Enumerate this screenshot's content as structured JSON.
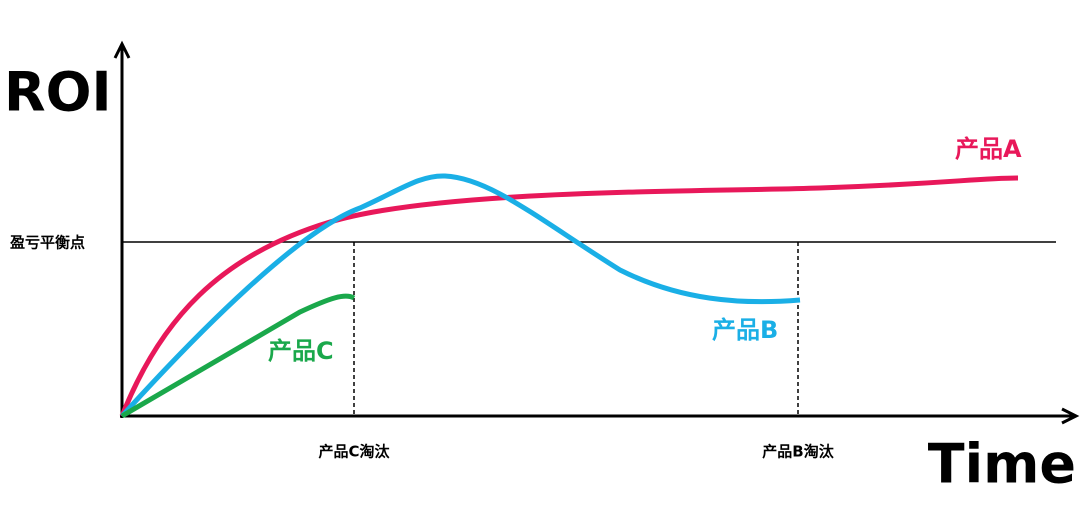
{
  "axes": {
    "y_label": "ROI",
    "x_label": "Time",
    "breakeven_label": "盈亏平衡点"
  },
  "curves": [
    {
      "label": "产品A"
    },
    {
      "label": "产品B"
    },
    {
      "label": "产品C"
    }
  ],
  "events": [
    {
      "label": "产品C淘汰"
    },
    {
      "label": "产品B淘汰"
    }
  ]
}
